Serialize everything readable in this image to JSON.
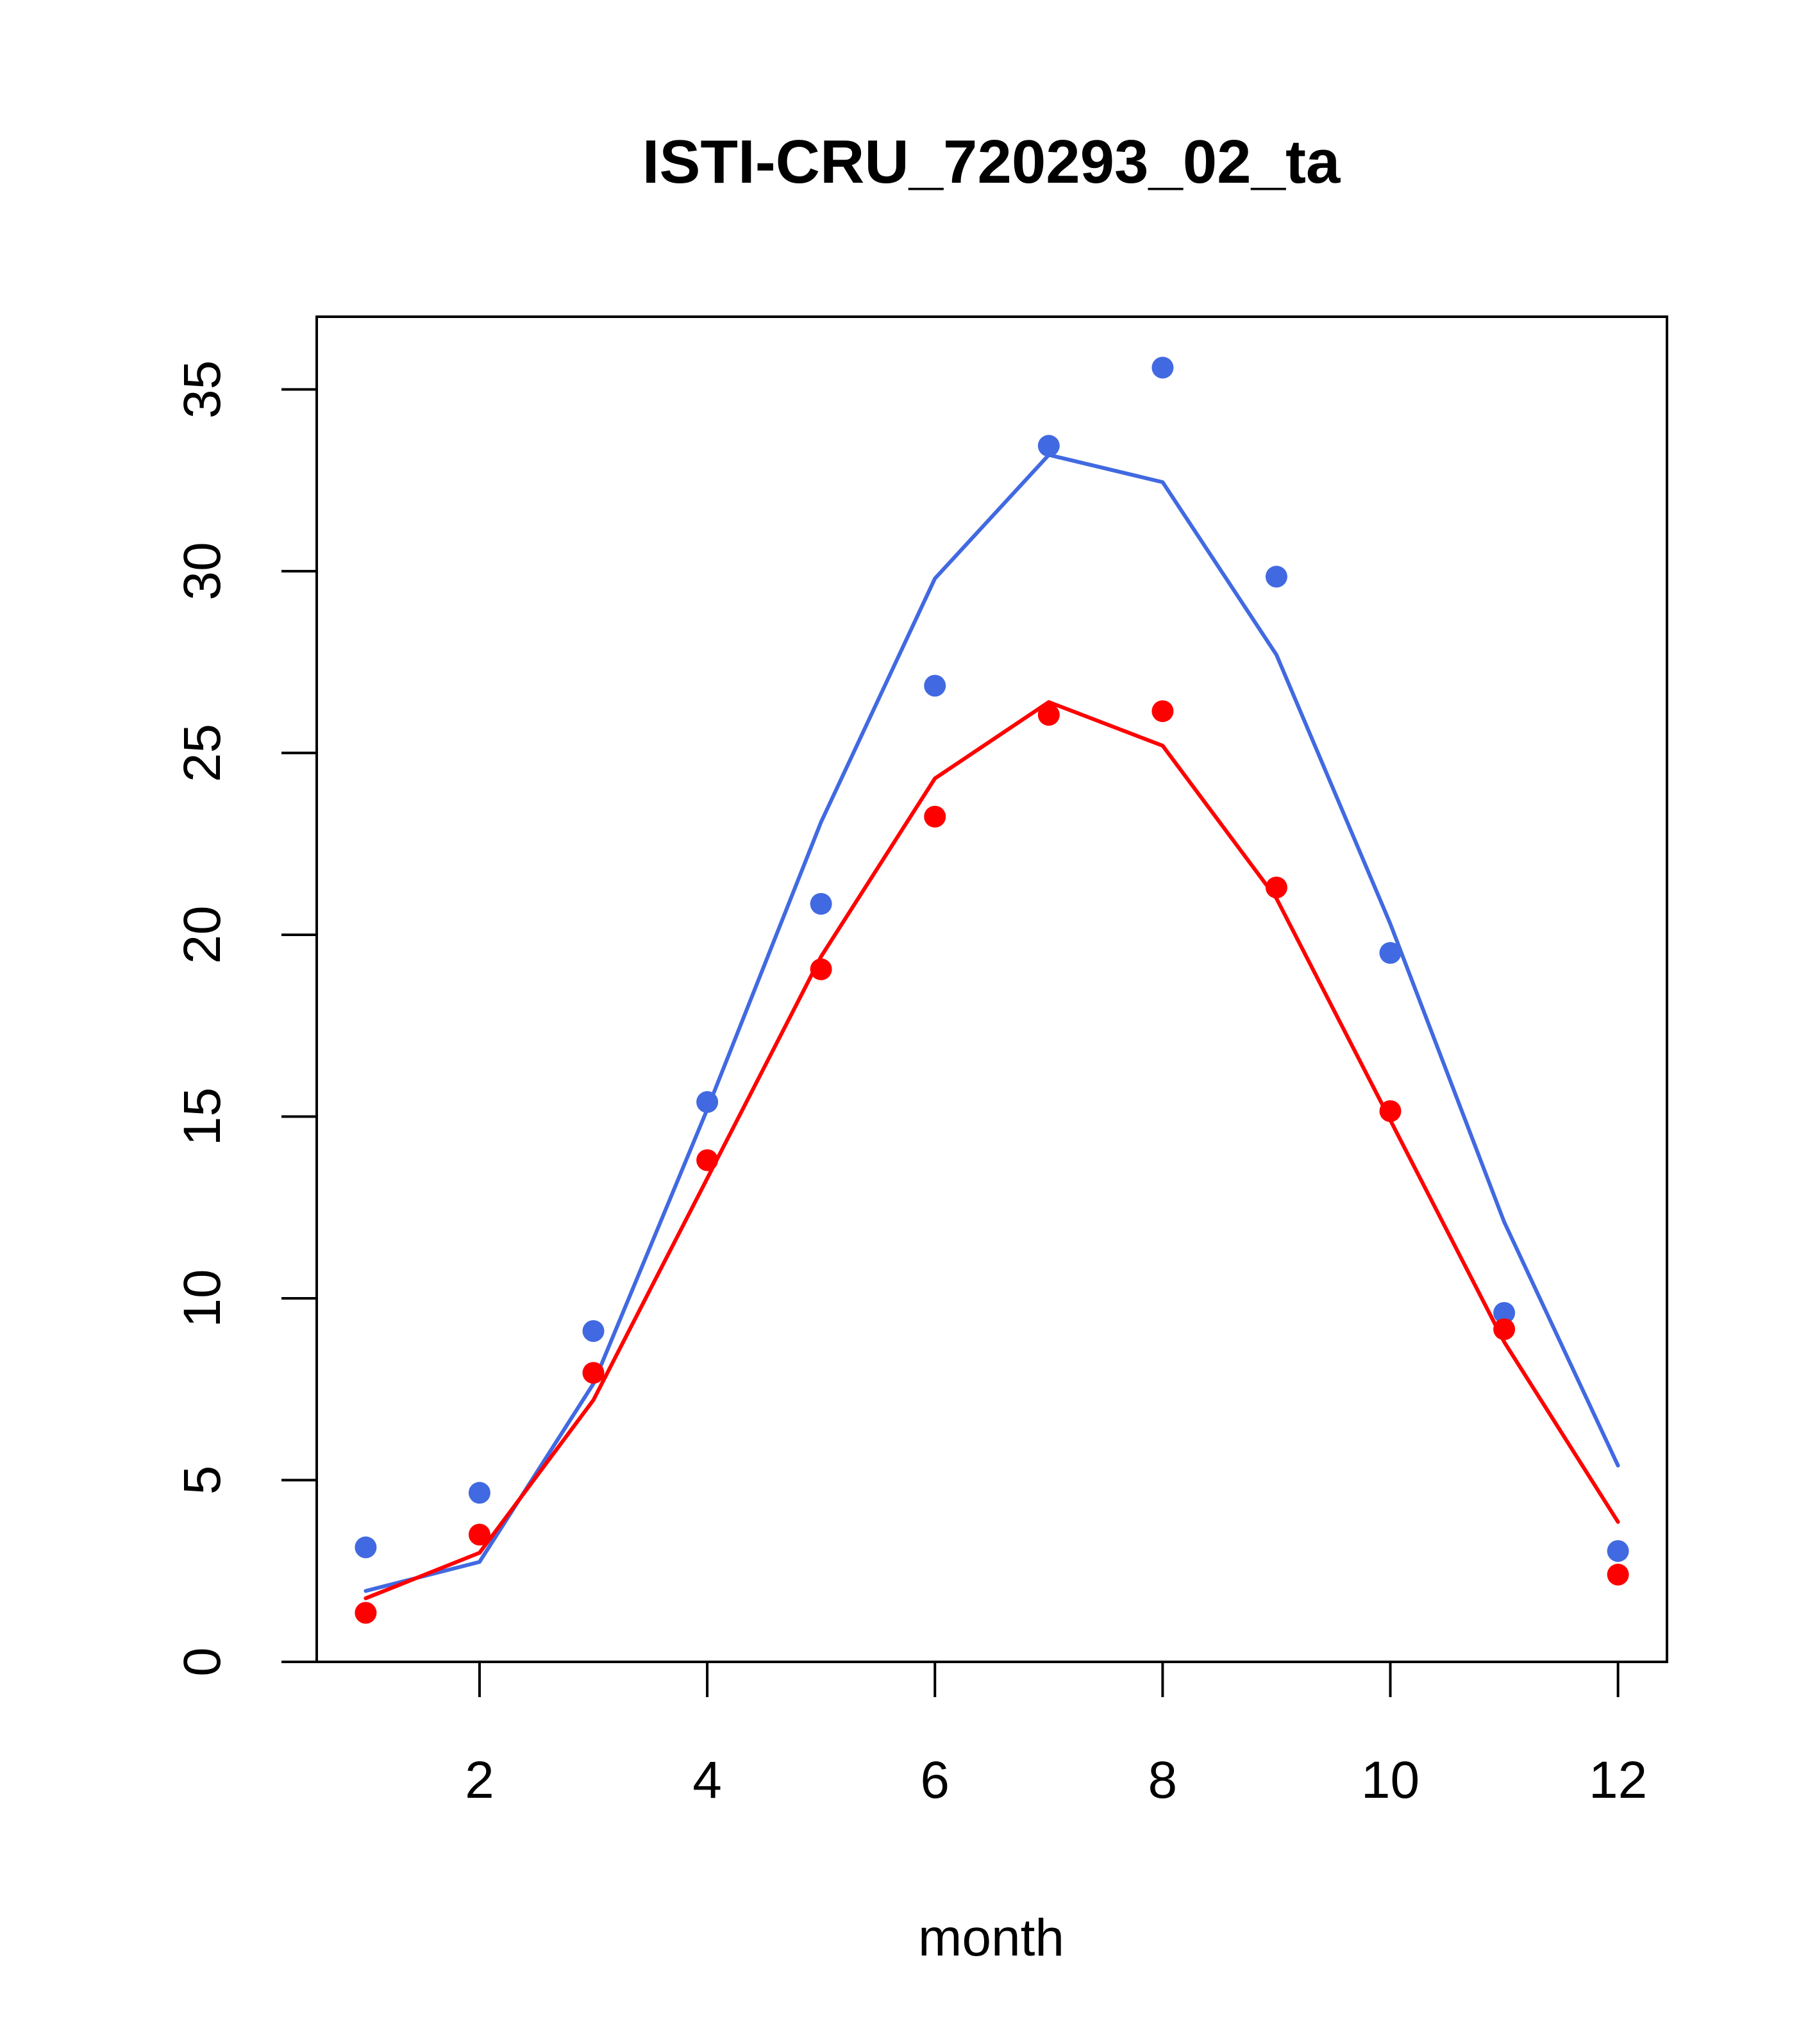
{
  "chart_data": {
    "type": "line",
    "title": "ISTI-CRU_720293_02_ta",
    "xlabel": "month",
    "ylabel": "",
    "xlim": [
      0.57,
      12.43
    ],
    "ylim": [
      0,
      37
    ],
    "xticks": [
      2,
      4,
      6,
      8,
      10,
      12
    ],
    "yticks": [
      0,
      5,
      10,
      15,
      20,
      25,
      30,
      35
    ],
    "grid": false,
    "legend": "none",
    "x": [
      1,
      2,
      3,
      4,
      5,
      6,
      7,
      8,
      9,
      10,
      11,
      12
    ],
    "series": [
      {
        "color": "#4169E1",
        "points": [
          3.15,
          4.65,
          9.1,
          15.4,
          20.85,
          26.85,
          33.45,
          35.6,
          29.85,
          19.5,
          9.6,
          3.05
        ],
        "line": [
          1.95,
          2.75,
          7.65,
          15.2,
          23.1,
          29.8,
          33.2,
          32.45,
          27.7,
          20.3,
          12.1,
          5.4
        ]
      },
      {
        "color": "#FF0000",
        "points": [
          1.35,
          3.5,
          7.95,
          13.8,
          19.05,
          23.25,
          26.05,
          26.15,
          21.3,
          15.15,
          9.15,
          2.4
        ],
        "line": [
          1.75,
          3.0,
          7.2,
          13.3,
          19.4,
          24.3,
          26.4,
          25.2,
          21.0,
          14.9,
          8.8,
          3.85
        ]
      }
    ]
  }
}
